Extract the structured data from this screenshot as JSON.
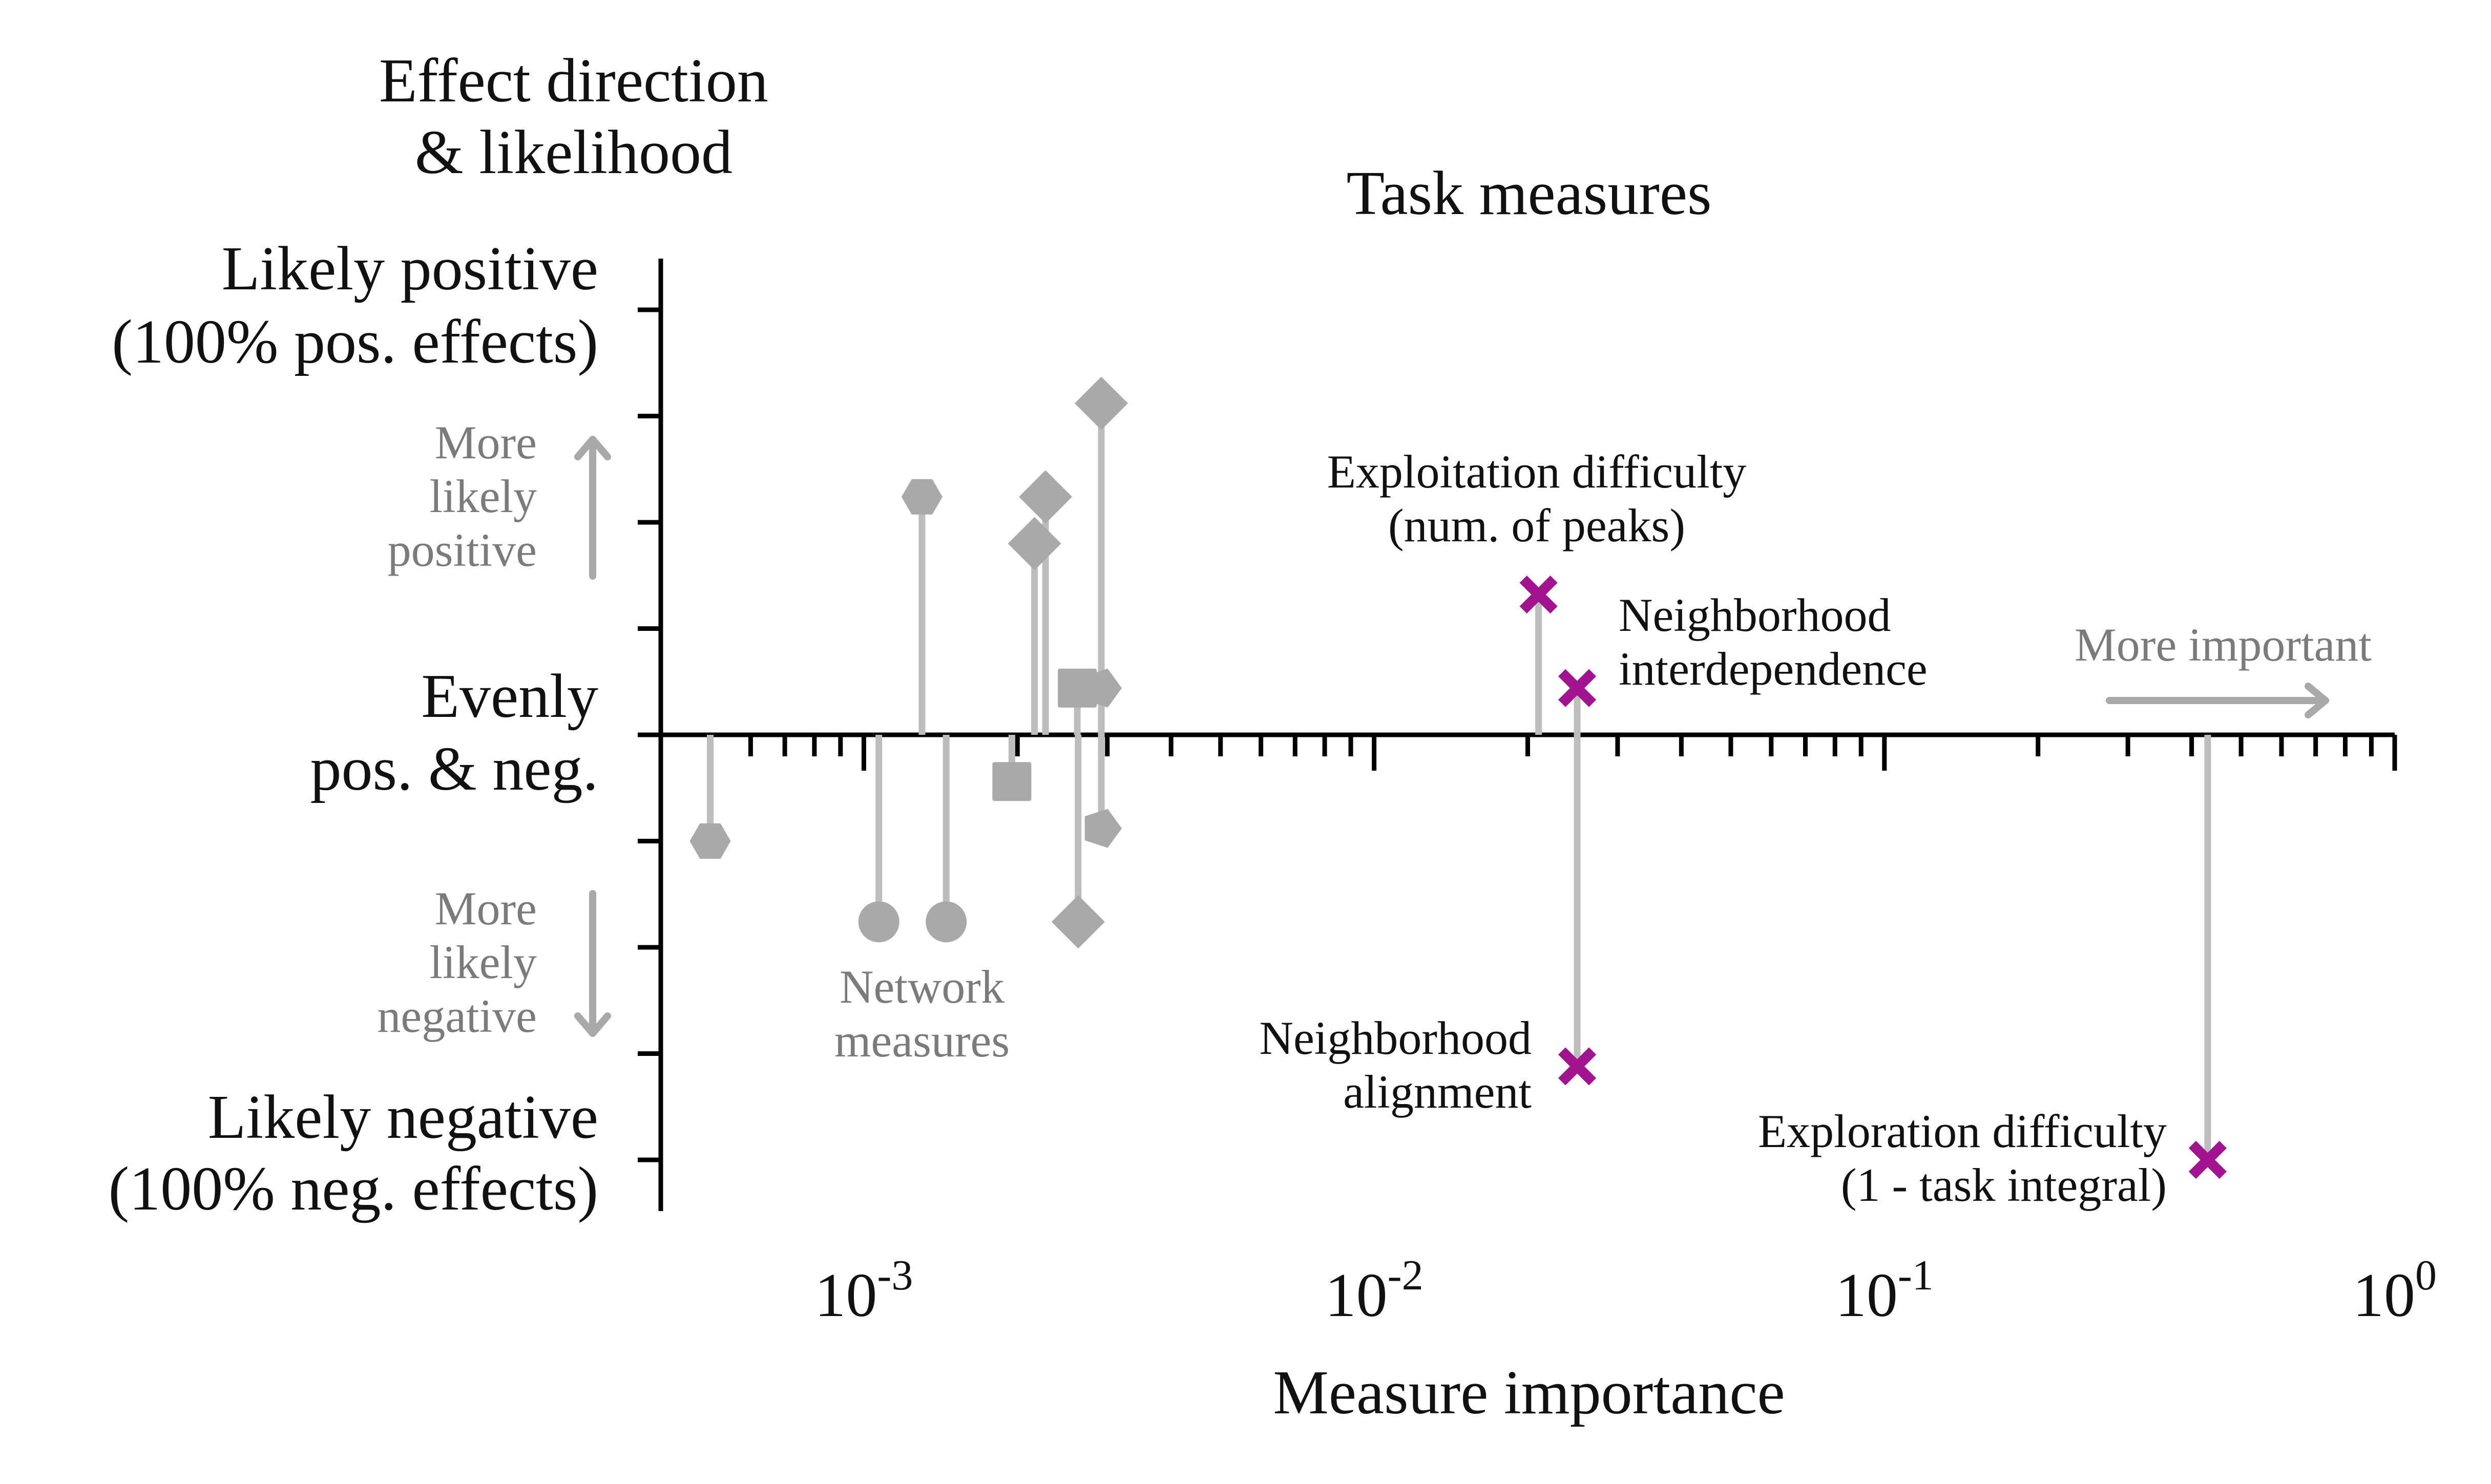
{
  "chart_data": {
    "type": "scatter",
    "title": "Task measures",
    "xlabel": "Measure importance",
    "ylabel": "Effect direction & likelihood",
    "x_scale": "log",
    "xlim": [
      0.0004,
      1
    ],
    "ylim": [
      -1,
      1
    ],
    "x_ticks": [
      {
        "base": "10",
        "exp": "-3",
        "value": 0.001
      },
      {
        "base": "10",
        "exp": "-2",
        "value": 0.01
      },
      {
        "base": "10",
        "exp": "-1",
        "value": 0.1
      },
      {
        "base": "10",
        "exp": "0",
        "value": 1
      }
    ],
    "y_labels": {
      "top_line1": "Likely positive",
      "top_line2": "(100% pos. effects)",
      "mid_line1": "Evenly",
      "mid_line2": "pos. & neg.",
      "bottom_line1": "Likely negative",
      "bottom_line2": "(100% neg. effects)"
    },
    "ylabel_lines": [
      "Effect direction",
      "& likelihood"
    ],
    "annotations": {
      "more_pos": [
        "More",
        "likely",
        "positive"
      ],
      "more_neg": [
        "More",
        "likely",
        "negative"
      ],
      "more_important": "More important",
      "network_group": [
        "Network",
        "measures"
      ]
    },
    "task_series": {
      "color": "#a2148f",
      "marker": "x",
      "points": [
        {
          "label_lines": [
            "Exploitation difficulty",
            "(num. of peaks)"
          ],
          "x": 0.021,
          "y": 0.33
        },
        {
          "label_lines": [
            "Neighborhood",
            "interdependence"
          ],
          "x": 0.025,
          "y": 0.11
        },
        {
          "label_lines": [
            "Neighborhood",
            "alignment"
          ],
          "x": 0.025,
          "y": -0.78
        },
        {
          "label_lines": [
            "Exploration difficulty",
            "(1 - task integral)"
          ],
          "x": 0.43,
          "y": -1.0
        }
      ]
    },
    "network_series": {
      "color": "#a9a9a9",
      "points": [
        {
          "marker": "hexagon",
          "x": 0.0005,
          "y": -0.25
        },
        {
          "marker": "hexagon",
          "x": 0.0013,
          "y": 0.56
        },
        {
          "marker": "circle",
          "x": 0.00107,
          "y": -0.44
        },
        {
          "marker": "circle",
          "x": 0.00145,
          "y": -0.44
        },
        {
          "marker": "diamond",
          "x": 0.00227,
          "y": 0.56
        },
        {
          "marker": "diamond",
          "x": 0.00216,
          "y": 0.45
        },
        {
          "marker": "diamond",
          "x": 0.00292,
          "y": 0.78
        },
        {
          "marker": "diamond",
          "x": 0.00263,
          "y": -0.44
        },
        {
          "marker": "square",
          "x": 0.00195,
          "y": -0.11
        },
        {
          "marker": "square",
          "x": 0.00262,
          "y": 0.11
        },
        {
          "marker": "pentagon",
          "x": 0.00292,
          "y": 0.11
        },
        {
          "marker": "pentagon",
          "x": 0.00292,
          "y": -0.22
        }
      ]
    }
  }
}
